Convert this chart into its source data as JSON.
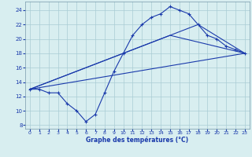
{
  "line1_x": [
    0,
    1,
    2,
    3,
    4,
    5,
    6,
    7,
    8,
    9,
    10,
    11,
    12,
    13,
    14,
    15,
    16,
    17,
    18,
    19,
    20,
    21,
    22,
    23
  ],
  "line1_y": [
    13,
    13,
    12.5,
    12.5,
    11,
    10,
    8.5,
    9.5,
    12.5,
    15.5,
    18,
    20.5,
    22,
    23,
    23.5,
    24.5,
    24,
    23.5,
    22,
    20.5,
    20,
    19,
    18.5,
    18
  ],
  "line2_x": [
    0,
    23
  ],
  "line2_y": [
    13,
    18
  ],
  "line3_x": [
    0,
    15,
    23
  ],
  "line3_y": [
    13,
    20.5,
    18
  ],
  "line4_x": [
    0,
    18,
    23
  ],
  "line4_y": [
    13,
    22,
    18
  ],
  "line_color": "#1a3aab",
  "bg_color": "#d8eef0",
  "grid_color": "#aaccd4",
  "xlabel": "Graphe des températures (°C)",
  "xlim": [
    -0.5,
    23.5
  ],
  "ylim": [
    7.5,
    25.2
  ],
  "yticks": [
    8,
    10,
    12,
    14,
    16,
    18,
    20,
    22,
    24
  ],
  "xticks": [
    0,
    1,
    2,
    3,
    4,
    5,
    6,
    7,
    8,
    9,
    10,
    11,
    12,
    13,
    14,
    15,
    16,
    17,
    18,
    19,
    20,
    21,
    22,
    23
  ]
}
